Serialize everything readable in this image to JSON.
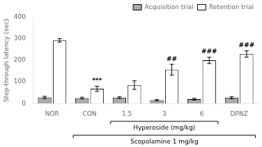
{
  "chart_data": {
    "type": "bar",
    "categories": [
      "NOR",
      "CON",
      "1.5",
      "3",
      "6",
      "DPNZ"
    ],
    "series": [
      {
        "name": "Acquisition trial",
        "color": "#aaaaaa",
        "values": [
          28,
          25,
          27,
          15,
          20,
          27
        ],
        "errors": [
          5,
          4,
          4,
          3,
          4,
          5
        ]
      },
      {
        "name": "Retention trial",
        "color": "#ffffff",
        "values": [
          293,
          68,
          85,
          157,
          200,
          230
        ],
        "errors": [
          8,
          12,
          20,
          25,
          15,
          15
        ]
      }
    ],
    "ylabel": "Step-through latency (sec)",
    "ylim": [
      0,
      400
    ],
    "yticks": [
      0,
      100,
      200,
      300,
      400
    ],
    "grid": false,
    "legend": "upper right",
    "annotations": [
      {
        "text": "***",
        "category": "CON",
        "series": "Retention trial"
      },
      {
        "text": "##",
        "category": "3",
        "series": "Retention trial"
      },
      {
        "text": "###",
        "category": "6",
        "series": "Retention trial"
      },
      {
        "text": "###",
        "category": "DPNZ",
        "series": "Retention trial"
      }
    ],
    "brackets": [
      {
        "text": "Hyperoside (mg/kg)",
        "categories": [
          "1.5",
          "6"
        ]
      },
      {
        "text": "Scopolamine 1 mg/kg",
        "categories": [
          "CON",
          "DPNZ"
        ]
      }
    ]
  }
}
